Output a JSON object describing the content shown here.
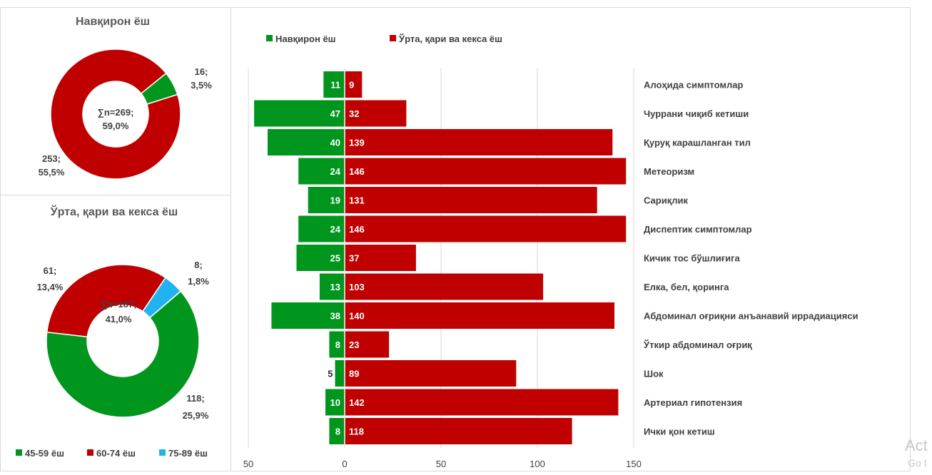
{
  "donut1": {
    "title": "Навқирон ёш",
    "center_lines": [
      "∑n=269;",
      "59,0%"
    ],
    "slices": [
      {
        "name": "60-74 ёш",
        "value": 253,
        "label_lines": [
          "253;",
          "55,5%"
        ],
        "color": "#c00000"
      },
      {
        "name": "45-59 ёш",
        "value": 16,
        "label_lines": [
          "16;",
          "3,5%"
        ],
        "color": "#00961e"
      }
    ]
  },
  "donut2": {
    "title": "Ўрта, қари ва кекса ёш",
    "center_lines": [
      "∑n=187;",
      "41,0%"
    ],
    "slices": [
      {
        "name": "45-59 ёш",
        "value": 118,
        "label_lines": [
          "118;",
          "25,9%"
        ],
        "color": "#00961e"
      },
      {
        "name": "60-74 ёш",
        "value": 61,
        "label_lines": [
          "61;",
          "13,4%"
        ],
        "color": "#c00000"
      },
      {
        "name": "75-89 ёш",
        "value": 8,
        "label_lines": [
          "8;",
          "1,8%"
        ],
        "color": "#1fb4f0"
      }
    ]
  },
  "donut_legend": [
    {
      "label": "45-59 ёш",
      "color": "#00961e"
    },
    {
      "label": "60-74 ёш",
      "color": "#c00000"
    },
    {
      "label": "75-89 ёш",
      "color": "#1fb4f0"
    }
  ],
  "chart_data": {
    "type": "bar",
    "orientation": "horizontal",
    "categories": [
      "Алоҳида симптомлар",
      "Чуррани чиқиб кетиши",
      "Қуруқ карашланган тил",
      "Метеоризм",
      "Сариқлик",
      "Диспептик симптомлар",
      "Кичик тос бўшлиғига",
      "Елка, бел, қоринга",
      "Абдоминал оғриқни анъанавий иррадиацияси",
      "Ўткир абдоминал оғриқ",
      "Шок",
      "Артериал гипотензия",
      "Ички қон кетиш"
    ],
    "series": [
      {
        "name": "Навқирон ёш",
        "color": "#00961e",
        "values": [
          11,
          47,
          40,
          24,
          19,
          24,
          25,
          13,
          38,
          8,
          5,
          10,
          8
        ]
      },
      {
        "name": "Ўрта, қари ва кекса ёш",
        "color": "#c00000",
        "values": [
          9,
          32,
          139,
          146,
          131,
          146,
          37,
          103,
          140,
          23,
          89,
          142,
          118
        ]
      }
    ],
    "xlim": [
      -50,
      150
    ],
    "xticks": [
      -50,
      0,
      50,
      100,
      150
    ],
    "xtick_labels": [
      "50",
      "0",
      "50",
      "100",
      "150"
    ],
    "legend_position": "top-left",
    "grid": true
  },
  "watermark": {
    "line1": "Act",
    "line2": "Go t"
  }
}
